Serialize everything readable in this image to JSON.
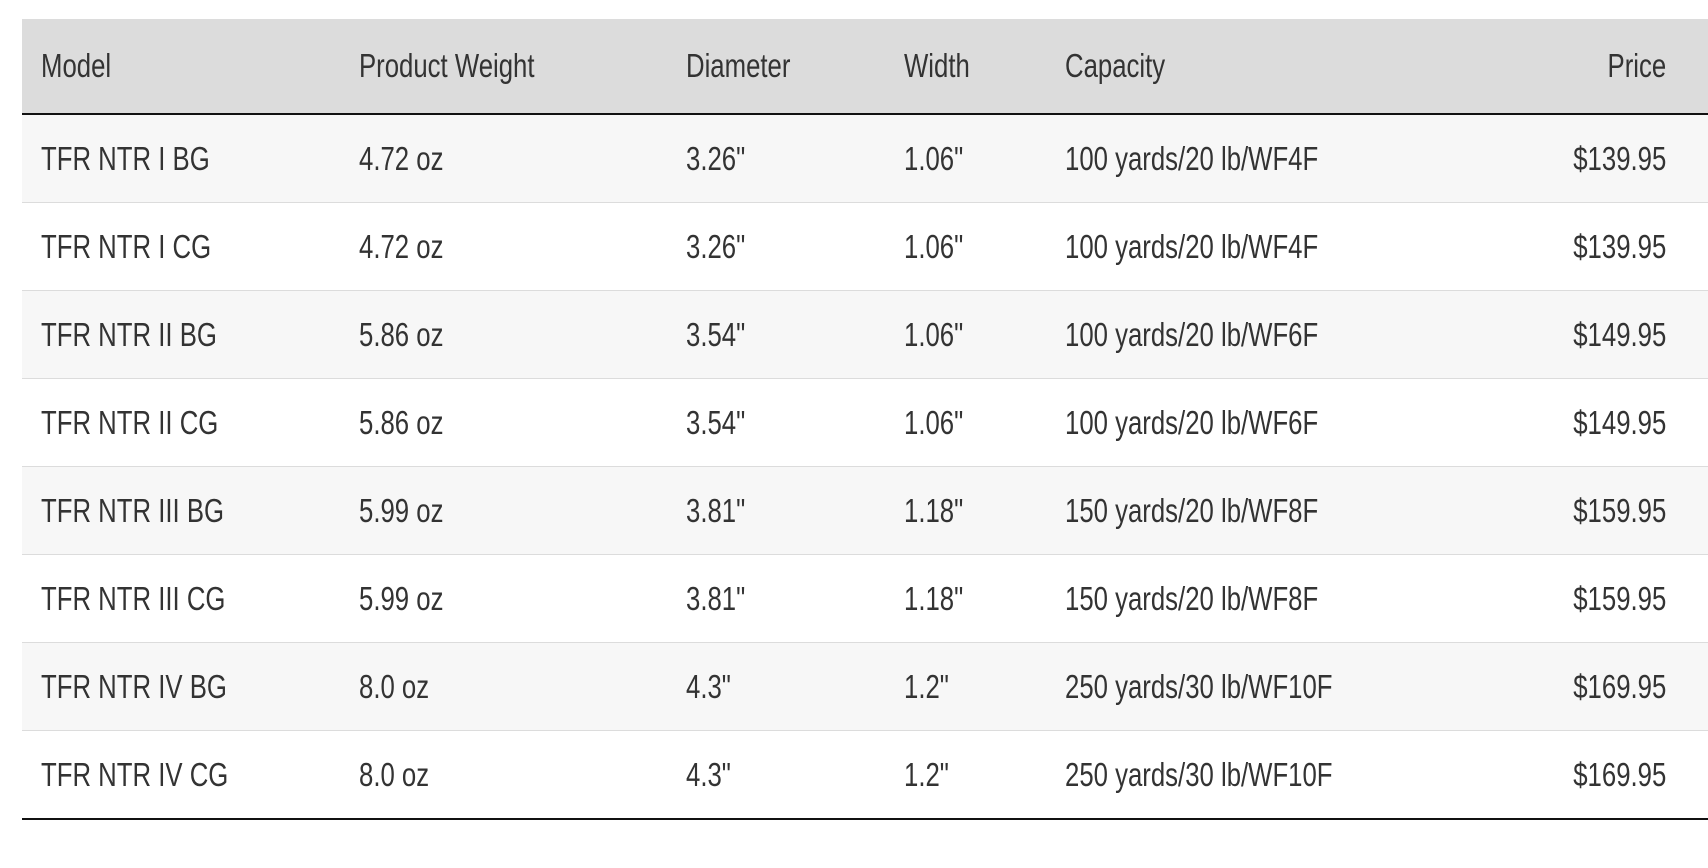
{
  "table": {
    "headers": [
      "Model",
      "Product Weight",
      "Diameter",
      "Width",
      "Capacity",
      "Price"
    ],
    "rows": [
      [
        "TFR NTR I BG",
        "4.72 oz",
        "3.26\"",
        "1.06\"",
        "100 yards/20 lb/WF4F",
        "$139.95"
      ],
      [
        "TFR NTR I CG",
        "4.72 oz",
        "3.26\"",
        "1.06\"",
        "100 yards/20 lb/WF4F",
        "$139.95"
      ],
      [
        "TFR NTR II BG",
        "5.86 oz",
        "3.54\"",
        "1.06\"",
        "100 yards/20 lb/WF6F",
        "$149.95"
      ],
      [
        "TFR NTR II CG",
        "5.86 oz",
        "3.54\"",
        "1.06\"",
        "100 yards/20 lb/WF6F",
        "$149.95"
      ],
      [
        "TFR NTR III BG",
        "5.99 oz",
        "3.81\"",
        "1.18\"",
        "150 yards/20 lb/WF8F",
        "$159.95"
      ],
      [
        "TFR NTR III CG",
        "5.99 oz",
        "3.81\"",
        "1.18\"",
        "150 yards/20 lb/WF8F",
        "$159.95"
      ],
      [
        "TFR NTR IV BG",
        "8.0 oz",
        "4.3\"",
        "1.2\"",
        "250 yards/30 lb/WF10F",
        "$169.95"
      ],
      [
        "TFR NTR IV CG",
        "8.0 oz",
        "4.3\"",
        "1.2\"",
        "250 yards/30 lb/WF10F",
        "$169.95"
      ]
    ]
  }
}
